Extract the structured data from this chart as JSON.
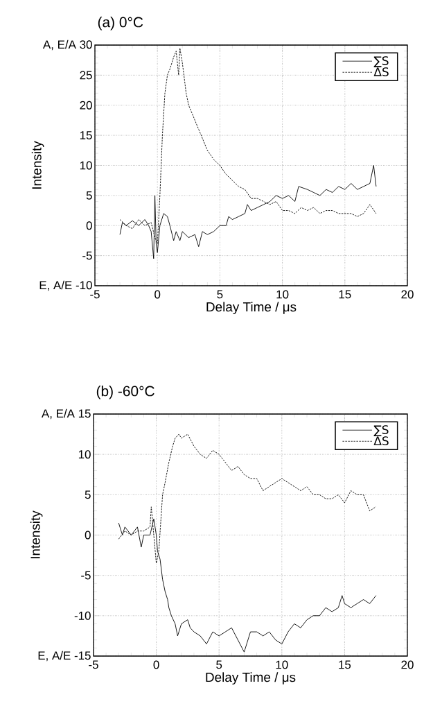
{
  "chart_data": [
    {
      "type": "line",
      "title": "(a) 0°C",
      "xlabel": "Delay Time / μs",
      "ylabel": "Intensity",
      "xlim": [
        -5,
        20
      ],
      "xticks": [
        -5,
        0,
        5,
        10,
        15,
        20
      ],
      "ylim": [
        -10,
        30
      ],
      "yticks": [
        {
          "value": -10,
          "label": "E, A/E -10"
        },
        -5,
        0,
        5,
        10,
        15,
        20,
        25,
        {
          "value": 30,
          "label": "A, E/A 30"
        }
      ],
      "grid": true,
      "legend": "top right",
      "marker": "none",
      "series": [
        {
          "name": "∑S",
          "color": "#000000",
          "line_style": "solid",
          "x": [
            -3,
            -2.8,
            -2.5,
            -2,
            -1.5,
            -1,
            -0.7,
            -0.5,
            -0.3,
            -0.2,
            -0.1,
            0,
            0.2,
            0.5,
            0.8,
            1,
            1.3,
            1.5,
            1.8,
            2,
            2.5,
            3,
            3.3,
            3.6,
            4,
            4.5,
            5,
            5.5,
            5.7,
            6,
            6.5,
            7,
            7.2,
            7.5,
            8,
            8.5,
            9,
            9.5,
            10,
            10.5,
            11,
            11.3,
            12,
            12.5,
            13,
            13.5,
            14,
            14.5,
            15,
            15.5,
            16,
            16.5,
            17,
            17.3,
            17.5
          ],
          "values": [
            -1.5,
            0.5,
            0,
            0.8,
            0,
            1,
            0,
            -1,
            -5.5,
            5,
            -3,
            -4.5,
            0,
            2,
            1.5,
            0,
            -2.5,
            -1,
            -2.5,
            -1,
            -2,
            -1.5,
            -3.5,
            -1,
            -1.5,
            -1,
            0,
            0,
            1.5,
            1,
            1.5,
            2,
            3.5,
            2.5,
            3,
            3.5,
            4,
            5,
            4.5,
            5,
            4,
            6.5,
            6,
            5.5,
            5,
            6,
            5.5,
            6.5,
            6,
            7,
            6,
            6.5,
            7,
            10,
            6.5
          ]
        },
        {
          "name": "ΔS",
          "color": "#000000",
          "line_style": "dashed",
          "x": [
            -3,
            -2.5,
            -2,
            -1.5,
            -1,
            -0.5,
            -0.2,
            0,
            0.2,
            0.4,
            0.6,
            0.8,
            1,
            1.3,
            1.5,
            1.7,
            1.8,
            2,
            2.3,
            2.5,
            3,
            3.5,
            4,
            4.5,
            5,
            5.5,
            6,
            6.5,
            7,
            7.5,
            8,
            8.5,
            9,
            9.5,
            10,
            10.5,
            11,
            11.5,
            12,
            12.5,
            13,
            13.5,
            14,
            14.5,
            15,
            15.5,
            16,
            16.5,
            17,
            17.5
          ],
          "values": [
            1,
            0,
            -0.5,
            1,
            0,
            0.5,
            -2,
            -3,
            5,
            15,
            22,
            25,
            26,
            28,
            29,
            25,
            29.5,
            27,
            22,
            20,
            17.5,
            15,
            12.5,
            11,
            10,
            8.5,
            7.5,
            6.5,
            6,
            4.5,
            4.5,
            4,
            3.5,
            4,
            2.5,
            2.5,
            2,
            3,
            2.5,
            3,
            2,
            2.5,
            2.5,
            2,
            2,
            2,
            1.5,
            2,
            3.5,
            2
          ]
        }
      ]
    },
    {
      "type": "line",
      "title": "(b) -60°C",
      "xlabel": "Delay Time / μs",
      "ylabel": "Intensity",
      "xlim": [
        -5,
        20
      ],
      "xticks": [
        -5,
        0,
        5,
        10,
        15,
        20
      ],
      "ylim": [
        -15,
        15
      ],
      "yticks": [
        {
          "value": -15,
          "label": "E, A/E -15"
        },
        -10,
        -5,
        0,
        5,
        10,
        {
          "value": 15,
          "label": "A, E/A 15"
        }
      ],
      "grid": true,
      "legend": "top right",
      "marker": "none",
      "series": [
        {
          "name": "∑S",
          "color": "#000000",
          "line_style": "solid",
          "x": [
            -3,
            -2.7,
            -2.5,
            -2,
            -1.5,
            -1.2,
            -1,
            -0.5,
            -0.2,
            0,
            0.1,
            0.3,
            0.5,
            0.7,
            0.9,
            1,
            1.2,
            1.5,
            1.7,
            2,
            2.5,
            2.7,
            3,
            3.5,
            4,
            4.5,
            5,
            5.5,
            6,
            6.5,
            7,
            7.5,
            8,
            8.5,
            9,
            9.5,
            10,
            10.5,
            11,
            11.5,
            12,
            12.5,
            13,
            13.5,
            14,
            14.5,
            14.8,
            15,
            15.5,
            16,
            16.5,
            17,
            17.5
          ],
          "values": [
            1.5,
            0,
            1,
            0,
            1,
            -1.5,
            0,
            0,
            2,
            0,
            -2,
            -3,
            -5.5,
            -7,
            -8,
            -9,
            -10,
            -11,
            -12.5,
            -11,
            -10.5,
            -11.5,
            -12,
            -12.5,
            -13.5,
            -12,
            -12.5,
            -12,
            -11.5,
            -13,
            -14.5,
            -12,
            -12,
            -12.5,
            -12,
            -13,
            -13.5,
            -12,
            -11,
            -11.5,
            -10.5,
            -10,
            -10,
            -9,
            -9.5,
            -9,
            -7.5,
            -8.5,
            -9,
            -8.5,
            -8,
            -8.5,
            -7.5
          ]
        },
        {
          "name": "ΔS",
          "color": "#000000",
          "line_style": "dashed",
          "x": [
            -3,
            -2.5,
            -2,
            -1.5,
            -1,
            -0.5,
            -0.4,
            -0.2,
            0,
            0.2,
            0.5,
            0.7,
            1,
            1.3,
            1.5,
            1.8,
            2,
            2.5,
            3,
            3.5,
            4,
            4.5,
            5,
            5.5,
            6,
            6.5,
            7,
            7.5,
            8,
            8.5,
            9,
            9.5,
            10,
            10.5,
            11,
            11.5,
            12,
            12.5,
            13,
            13.5,
            14,
            14.5,
            15,
            15.5,
            16,
            16.5,
            17,
            17.5
          ],
          "values": [
            -0.5,
            0.5,
            0,
            0.5,
            0.5,
            1,
            3.5,
            0,
            -3.5,
            -2,
            5,
            6.5,
            9,
            11,
            12,
            12.5,
            12,
            12.5,
            11,
            10,
            9.5,
            10.5,
            10,
            9,
            8,
            8.5,
            7.5,
            7,
            7,
            5.5,
            6,
            6.5,
            7,
            6.5,
            6,
            5.5,
            6,
            5,
            5,
            4.5,
            4.5,
            5,
            4,
            5.5,
            5,
            5,
            3,
            3.5
          ]
        }
      ]
    }
  ]
}
